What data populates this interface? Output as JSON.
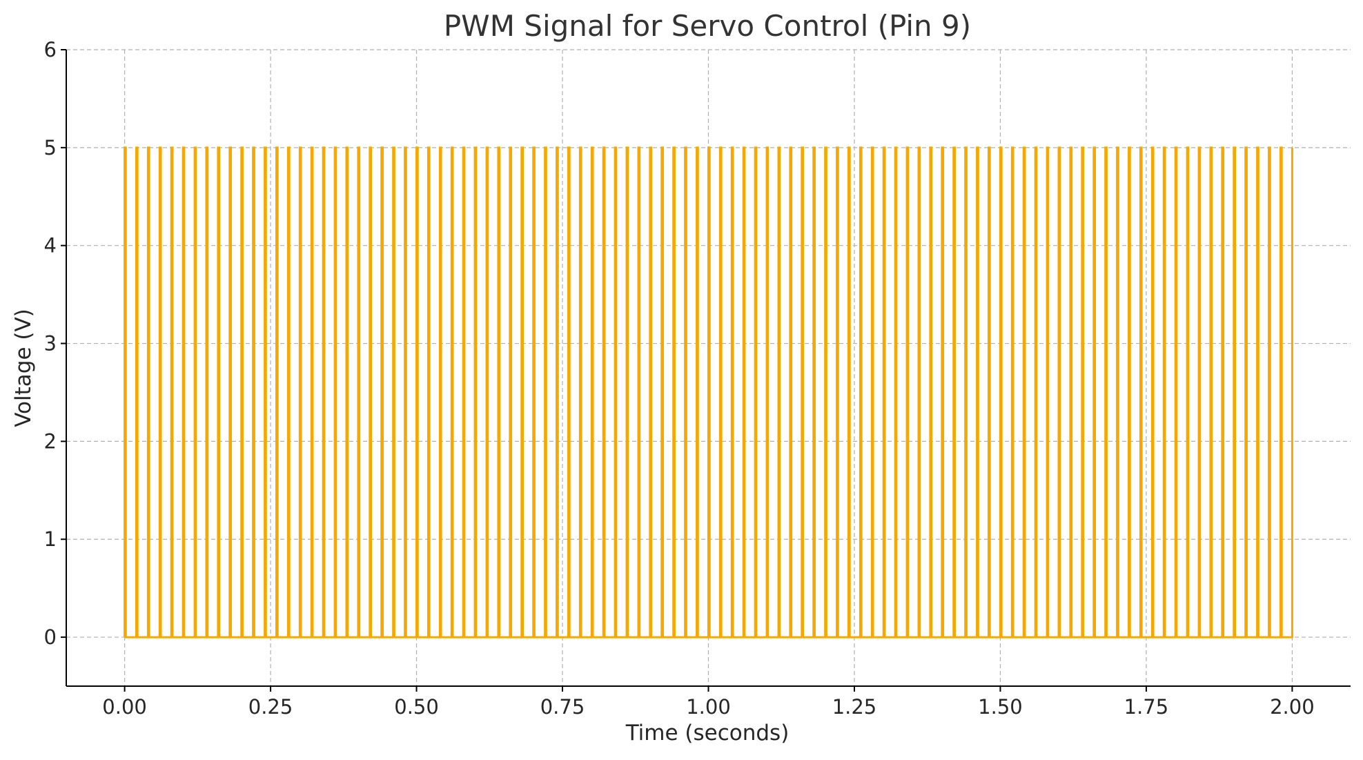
{
  "chart_data": {
    "type": "line",
    "title": "PWM Signal for Servo Control (Pin 9)",
    "xlabel": "Time (seconds)",
    "ylabel": "Voltage (V)",
    "xlim": [
      -0.1,
      2.1
    ],
    "ylim": [
      -0.5,
      6
    ],
    "x_ticks": [
      "0.00",
      "0.25",
      "0.50",
      "0.75",
      "1.00",
      "1.25",
      "1.50",
      "1.75",
      "2.00"
    ],
    "x_tick_values": [
      0,
      0.25,
      0.5,
      0.75,
      1.0,
      1.25,
      1.5,
      1.75,
      2.0
    ],
    "y_ticks": [
      "0",
      "1",
      "2",
      "3",
      "4",
      "5",
      "6"
    ],
    "y_tick_values": [
      0,
      1,
      2,
      3,
      4,
      5,
      6
    ],
    "grid": true,
    "series": [
      {
        "color": "#f5a800",
        "signal": {
          "start_time": 0,
          "end_time": 2.0,
          "period": 0.02,
          "pulse_width": 0.002,
          "high": 5,
          "low": 0
        }
      }
    ]
  }
}
